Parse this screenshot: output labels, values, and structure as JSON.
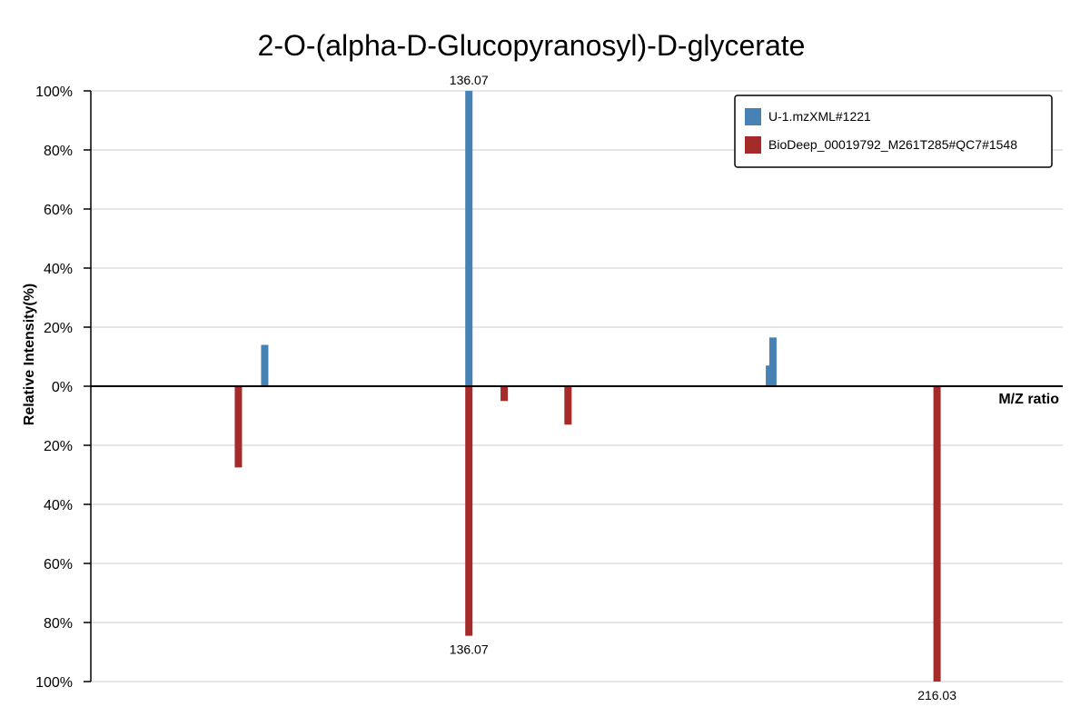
{
  "chart_data": {
    "type": "bar",
    "title": "2-O-(alpha-D-Glucopyranosyl)-D-glycerate",
    "xlabel": "M/Z ratio",
    "ylabel": "Relative Intensity(%)",
    "xlim": [
      71.5,
      237.5
    ],
    "ylim": [
      -100,
      100
    ],
    "yticks": [
      {
        "value": 100,
        "label": "100%"
      },
      {
        "value": 80,
        "label": "80%"
      },
      {
        "value": 60,
        "label": "60%"
      },
      {
        "value": 40,
        "label": "40%"
      },
      {
        "value": 20,
        "label": "20%"
      },
      {
        "value": 0,
        "label": "0%"
      },
      {
        "value": -20,
        "label": "20%"
      },
      {
        "value": -40,
        "label": "40%"
      },
      {
        "value": -60,
        "label": "60%"
      },
      {
        "value": -80,
        "label": "80%"
      },
      {
        "value": -100,
        "label": "100%"
      }
    ],
    "grid": true,
    "legend_position": "top-right",
    "series": [
      {
        "name": "U-1.mzXML#1221",
        "color": "#4682b4",
        "direction": "up",
        "peaks": [
          {
            "mz": 101.2,
            "intensity": 14
          },
          {
            "mz": 136.07,
            "intensity": 100,
            "label": "136.07"
          },
          {
            "mz": 187.4,
            "intensity": 7
          },
          {
            "mz": 188.0,
            "intensity": 16.5
          }
        ]
      },
      {
        "name": "BioDeep_00019792_M261T285#QC7#1548",
        "color": "#a52a2a",
        "direction": "down",
        "peaks": [
          {
            "mz": 96.7,
            "intensity": 27.5
          },
          {
            "mz": 136.07,
            "intensity": 84.5,
            "label": "136.07"
          },
          {
            "mz": 142.1,
            "intensity": 5
          },
          {
            "mz": 153.0,
            "intensity": 13
          },
          {
            "mz": 216.03,
            "intensity": 100,
            "label": "216.03"
          }
        ]
      }
    ]
  }
}
